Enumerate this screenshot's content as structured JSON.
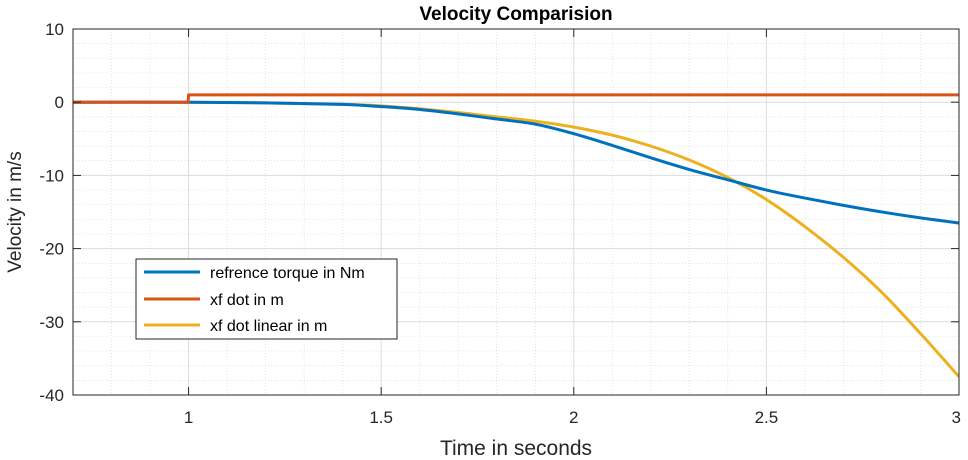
{
  "chart_data": {
    "type": "line",
    "title": "Velocity Comparision",
    "xlabel": "Time in seconds",
    "ylabel": "Velocity in m/s",
    "xlim": [
      0.7,
      3.0
    ],
    "ylim": [
      -40,
      10
    ],
    "xticks": [
      1,
      1.5,
      2,
      2.5,
      3
    ],
    "xtick_labels": [
      "1",
      "1.5",
      "2",
      "2.5",
      "3"
    ],
    "yticks": [
      -40,
      -30,
      -20,
      -10,
      0,
      10
    ],
    "ytick_labels": [
      "-40",
      "-30",
      "-20",
      "-10",
      "0",
      "10"
    ],
    "grid": true,
    "minor_grid": true,
    "legend_position": "lower-left",
    "series": [
      {
        "name": "refrence torque in Nm",
        "color": "#0072BD",
        "x": [
          0.7,
          1.0,
          1.2,
          1.4,
          1.5,
          1.6,
          1.7,
          1.8,
          1.9,
          2.0,
          2.1,
          2.2,
          2.3,
          2.4,
          2.5,
          2.6,
          2.7,
          2.8,
          2.9,
          3.0
        ],
        "y": [
          0,
          0,
          -0.1,
          -0.3,
          -0.6,
          -1.0,
          -1.6,
          -2.3,
          -3.0,
          -4.3,
          -5.9,
          -7.6,
          -9.2,
          -10.6,
          -12.0,
          -13.1,
          -14.1,
          -15.0,
          -15.8,
          -16.5
        ]
      },
      {
        "name": "xf dot in m",
        "color": "#D95319",
        "x": [
          0.7,
          0.999,
          1.0,
          3.0
        ],
        "y": [
          0,
          0,
          1,
          1
        ]
      },
      {
        "name": "xf dot linear in m",
        "color": "#EDB120",
        "x": [
          0.7,
          1.0,
          1.2,
          1.4,
          1.5,
          1.6,
          1.7,
          1.8,
          1.9,
          2.0,
          2.1,
          2.2,
          2.3,
          2.4,
          2.5,
          2.6,
          2.7,
          2.8,
          2.9,
          3.0
        ],
        "y": [
          0,
          0,
          -0.1,
          -0.3,
          -0.5,
          -0.9,
          -1.4,
          -2.0,
          -2.6,
          -3.4,
          -4.5,
          -6.0,
          -7.9,
          -10.3,
          -13.3,
          -17.0,
          -21.2,
          -26.0,
          -31.6,
          -37.5
        ]
      }
    ]
  }
}
